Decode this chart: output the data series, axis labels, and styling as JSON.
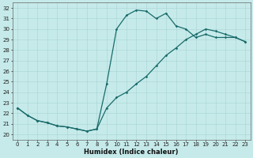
{
  "xlabel": "Humidex (Indice chaleur)",
  "xlim": [
    -0.5,
    23.5
  ],
  "ylim": [
    19.5,
    32.5
  ],
  "xticks": [
    0,
    1,
    2,
    3,
    4,
    5,
    6,
    7,
    8,
    9,
    10,
    11,
    12,
    13,
    14,
    15,
    16,
    17,
    18,
    19,
    20,
    21,
    22,
    23
  ],
  "yticks": [
    20,
    21,
    22,
    23,
    24,
    25,
    26,
    27,
    28,
    29,
    30,
    31,
    32
  ],
  "bg_color": "#c6eaea",
  "grid_color": "#a8d4d4",
  "line_color": "#1a6b6b",
  "line1_x": [
    0,
    1,
    2,
    3,
    4,
    5,
    6,
    7,
    8,
    9,
    10,
    11,
    12,
    13,
    14,
    15,
    16,
    17,
    18,
    19,
    20,
    21,
    22,
    23
  ],
  "line1_y": [
    22.5,
    21.8,
    21.3,
    21.1,
    20.8,
    20.7,
    20.5,
    20.3,
    20.5,
    24.8,
    30.0,
    31.3,
    31.8,
    31.7,
    31.0,
    31.5,
    30.3,
    30.0,
    29.2,
    29.5,
    29.2,
    29.2,
    29.2,
    28.8
  ],
  "line2_x": [
    0,
    1,
    2,
    3,
    4,
    5,
    6,
    7,
    8,
    9,
    10,
    11,
    12,
    13,
    14,
    15,
    16,
    17,
    18,
    19,
    20,
    21,
    22,
    23
  ],
  "line2_y": [
    22.5,
    21.8,
    21.3,
    21.1,
    20.8,
    20.7,
    20.5,
    20.3,
    20.5,
    22.5,
    23.5,
    24.0,
    24.8,
    25.5,
    26.5,
    27.5,
    28.2,
    29.0,
    29.5,
    30.0,
    29.8,
    29.5,
    29.2,
    28.8
  ],
  "font_size_label": 6,
  "font_size_tick": 5,
  "line_width": 0.9,
  "marker": "D",
  "marker_size": 1.8
}
